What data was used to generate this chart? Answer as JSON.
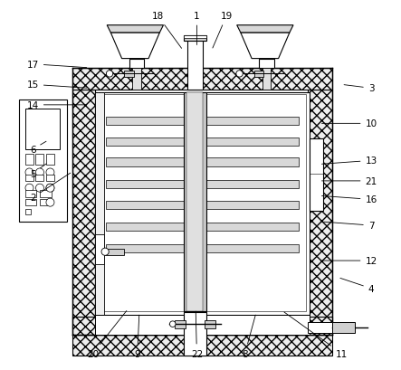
{
  "bg_color": "#ffffff",
  "lc": "#000000",
  "hatch_light": "///",
  "hatch_heavy": "xxx",
  "label_fs": 7.5,
  "labels_and_targets": {
    "1": {
      "lpos": [
        0.49,
        0.955
      ],
      "tpos": [
        0.49,
        0.87
      ]
    },
    "2": {
      "lpos": [
        0.048,
        0.465
      ],
      "tpos": [
        0.155,
        0.535
      ]
    },
    "3": {
      "lpos": [
        0.96,
        0.76
      ],
      "tpos": [
        0.88,
        0.77
      ]
    },
    "4": {
      "lpos": [
        0.96,
        0.22
      ],
      "tpos": [
        0.87,
        0.25
      ]
    },
    "5": {
      "lpos": [
        0.048,
        0.53
      ],
      "tpos": [
        0.09,
        0.56
      ]
    },
    "6": {
      "lpos": [
        0.048,
        0.595
      ],
      "tpos": [
        0.09,
        0.62
      ]
    },
    "7": {
      "lpos": [
        0.96,
        0.39
      ],
      "tpos": [
        0.825,
        0.4
      ]
    },
    "8": {
      "lpos": [
        0.62,
        0.045
      ],
      "tpos": [
        0.65,
        0.155
      ]
    },
    "9": {
      "lpos": [
        0.33,
        0.045
      ],
      "tpos": [
        0.335,
        0.155
      ]
    },
    "10": {
      "lpos": [
        0.96,
        0.665
      ],
      "tpos": [
        0.82,
        0.665
      ]
    },
    "11": {
      "lpos": [
        0.88,
        0.045
      ],
      "tpos": [
        0.72,
        0.16
      ]
    },
    "12": {
      "lpos": [
        0.96,
        0.295
      ],
      "tpos": [
        0.82,
        0.295
      ]
    },
    "13": {
      "lpos": [
        0.96,
        0.565
      ],
      "tpos": [
        0.82,
        0.555
      ]
    },
    "14": {
      "lpos": [
        0.048,
        0.715
      ],
      "tpos": [
        0.2,
        0.715
      ]
    },
    "15": {
      "lpos": [
        0.048,
        0.77
      ],
      "tpos": [
        0.2,
        0.76
      ]
    },
    "16": {
      "lpos": [
        0.96,
        0.46
      ],
      "tpos": [
        0.82,
        0.47
      ]
    },
    "17": {
      "lpos": [
        0.048,
        0.825
      ],
      "tpos": [
        0.2,
        0.815
      ]
    },
    "18": {
      "lpos": [
        0.385,
        0.955
      ],
      "tpos": [
        0.453,
        0.862
      ]
    },
    "19": {
      "lpos": [
        0.57,
        0.955
      ],
      "tpos": [
        0.53,
        0.862
      ]
    },
    "20": {
      "lpos": [
        0.21,
        0.045
      ],
      "tpos": [
        0.305,
        0.165
      ]
    },
    "21": {
      "lpos": [
        0.96,
        0.51
      ],
      "tpos": [
        0.82,
        0.51
      ]
    },
    "22": {
      "lpos": [
        0.49,
        0.045
      ],
      "tpos": [
        0.487,
        0.165
      ]
    }
  }
}
